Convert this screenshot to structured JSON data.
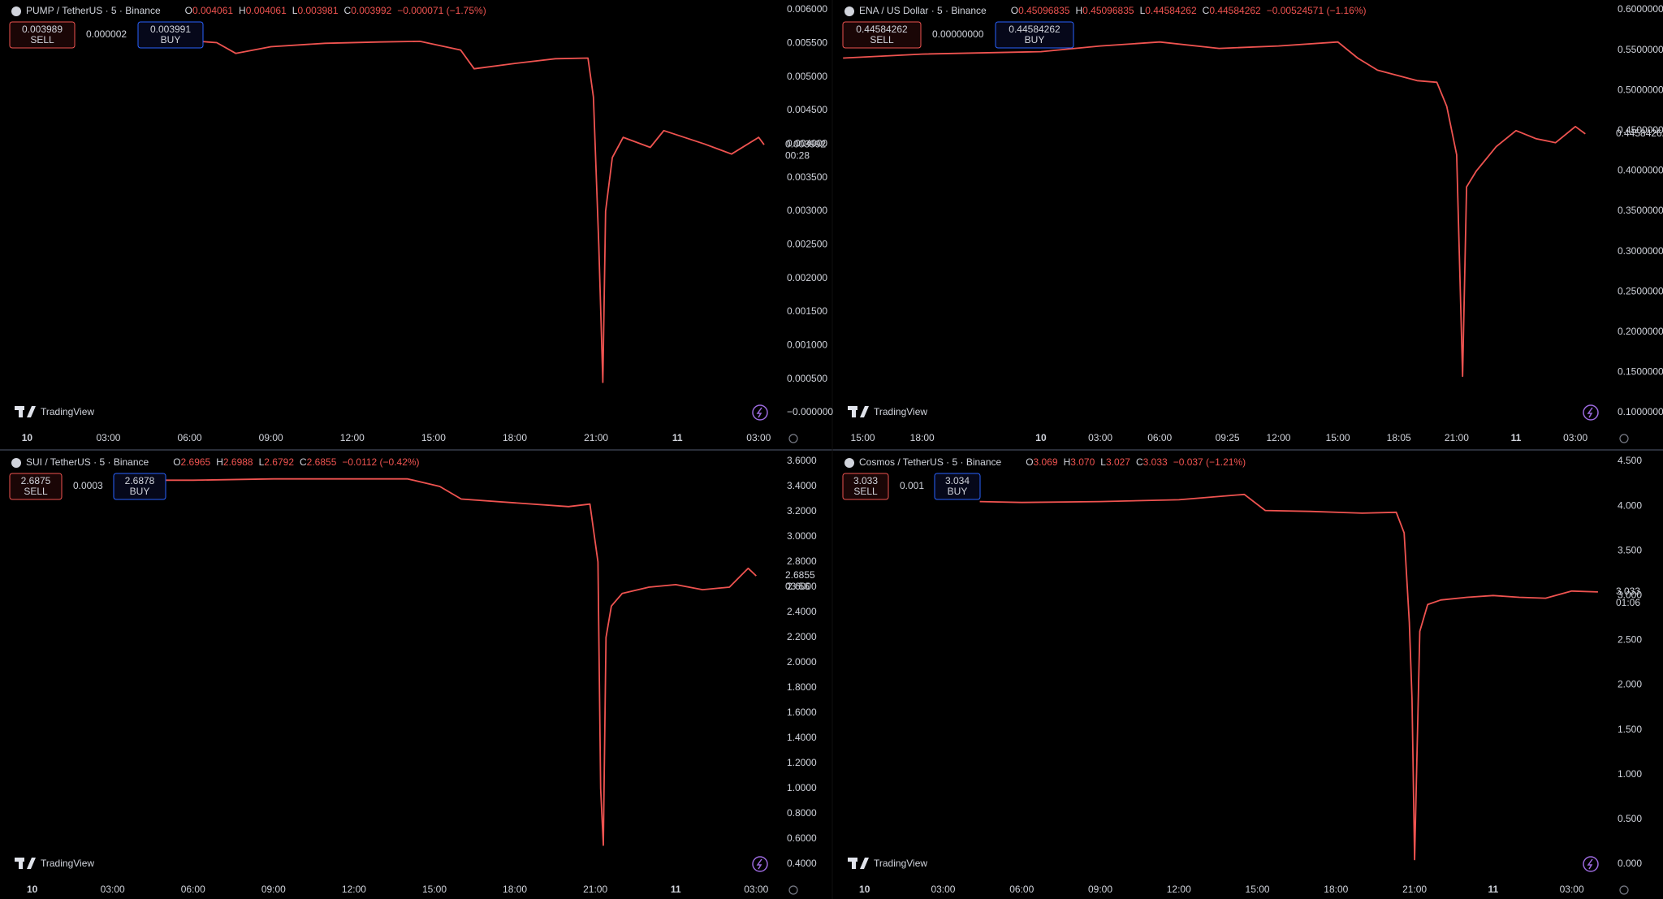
{
  "chart_data": [
    {
      "type": "line",
      "title": "PUMP / TetherUS · 5 · Binance",
      "ohlc": [
        {
          "label": "O",
          "value": "0.004061"
        },
        {
          "label": "H",
          "value": "0.004061"
        },
        {
          "label": "L",
          "value": "0.003981"
        },
        {
          "label": "C",
          "value": "0.003992"
        }
      ],
      "change": "−0.000071 (−1.75%)",
      "sell": {
        "price": "0.003989",
        "label": "SELL"
      },
      "spread": "0.000002",
      "buy": {
        "price": "0.003991",
        "label": "BUY"
      },
      "last_price": "0.003992",
      "countdown": "00:28",
      "watermark": "TradingView",
      "color": "#ef5350",
      "x": [
        5.3,
        7,
        7.7,
        9,
        11,
        13,
        14.5,
        16,
        16.5,
        18,
        19.5,
        20.7,
        20.9,
        21.1,
        21.25,
        21.35,
        21.6,
        22,
        23,
        23.5,
        25,
        26,
        27,
        27.2
      ],
      "values": [
        0.00556,
        0.00551,
        0.00535,
        0.00545,
        0.0055,
        0.00552,
        0.00553,
        0.0054,
        0.00512,
        0.0052,
        0.00527,
        0.00528,
        0.0047,
        0.0025,
        0.00045,
        0.003,
        0.0038,
        0.0041,
        0.00395,
        0.0042,
        0.004,
        0.00385,
        0.0041,
        0.00399
      ],
      "xlim": [
        -1,
        27.8
      ],
      "ylim": [
        0,
        0.006
      ],
      "xticks": [
        {
          "value": 0,
          "label": "10"
        },
        {
          "value": 3,
          "label": "03:00"
        },
        {
          "value": 6,
          "label": "06:00"
        },
        {
          "value": 9,
          "label": "09:00"
        },
        {
          "value": 12,
          "label": "12:00"
        },
        {
          "value": 15,
          "label": "15:00"
        },
        {
          "value": 18,
          "label": "18:00"
        },
        {
          "value": 21,
          "label": "21:00"
        },
        {
          "value": 24,
          "label": "11"
        },
        {
          "value": 27,
          "label": "03:00"
        }
      ],
      "yticks": [
        {
          "value": 0,
          "label": "−0.000000"
        },
        {
          "value": 0.0005,
          "label": "0.000500"
        },
        {
          "value": 0.001,
          "label": "0.001000"
        },
        {
          "value": 0.0015,
          "label": "0.001500"
        },
        {
          "value": 0.002,
          "label": "0.002000"
        },
        {
          "value": 0.0025,
          "label": "0.002500"
        },
        {
          "value": 0.003,
          "label": "0.003000"
        },
        {
          "value": 0.0035,
          "label": "0.003500"
        },
        {
          "value": 0.004,
          "label": "0.004000"
        },
        {
          "value": 0.0045,
          "label": "0.004500"
        },
        {
          "value": 0.005,
          "label": "0.005000"
        },
        {
          "value": 0.0055,
          "label": "0.005500"
        },
        {
          "value": 0.006,
          "label": "0.006000"
        }
      ]
    },
    {
      "type": "line",
      "title": "ENA / US Dollar · 5 · Binance",
      "ohlc": [
        {
          "label": "O",
          "value": "0.45096835"
        },
        {
          "label": "H",
          "value": "0.45096835"
        },
        {
          "label": "L",
          "value": "0.44584262"
        },
        {
          "label": "C",
          "value": "0.44584262"
        }
      ],
      "change": "−0.00524571 (−1.16%)",
      "sell": {
        "price": "0.44584262",
        "label": "SELL"
      },
      "spread": "0.00000000",
      "buy": {
        "price": "0.44584262",
        "label": "BUY"
      },
      "last_price": "0.44584262",
      "countdown": null,
      "watermark": "TradingView",
      "color": "#ef5350",
      "x": [
        -10,
        -6,
        0,
        3,
        6,
        9,
        12,
        15,
        16,
        17,
        19,
        20,
        20.5,
        21,
        21.3,
        21.5,
        22,
        23,
        24,
        25,
        26,
        27,
        27.5
      ],
      "values": [
        0.54,
        0.545,
        0.548,
        0.555,
        0.56,
        0.552,
        0.555,
        0.56,
        0.54,
        0.525,
        0.512,
        0.51,
        0.48,
        0.42,
        0.145,
        0.38,
        0.4,
        0.43,
        0.45,
        0.44,
        0.435,
        0.455,
        0.446
      ],
      "xlim": [
        -10.5,
        28.8
      ],
      "ylim": [
        0.1,
        0.6
      ],
      "xticks": [
        {
          "value": -9,
          "label": "15:00"
        },
        {
          "value": -6,
          "label": "18:00"
        },
        {
          "value": 0,
          "label": "10"
        },
        {
          "value": 3,
          "label": "03:00"
        },
        {
          "value": 6,
          "label": "06:00"
        },
        {
          "value": 9.42,
          "label": "09:25"
        },
        {
          "value": 12,
          "label": "12:00"
        },
        {
          "value": 15,
          "label": "15:00"
        },
        {
          "value": 18.08,
          "label": "18:05"
        },
        {
          "value": 21,
          "label": "21:00"
        },
        {
          "value": 24,
          "label": "11"
        },
        {
          "value": 27,
          "label": "03:00"
        }
      ],
      "yticks": [
        {
          "value": 0.1,
          "label": "0.10000000"
        },
        {
          "value": 0.15,
          "label": "0.15000000"
        },
        {
          "value": 0.2,
          "label": "0.20000000"
        },
        {
          "value": 0.25,
          "label": "0.25000000"
        },
        {
          "value": 0.3,
          "label": "0.30000000"
        },
        {
          "value": 0.35,
          "label": "0.35000000"
        },
        {
          "value": 0.4,
          "label": "0.40000000"
        },
        {
          "value": 0.45,
          "label": "0.45000000"
        },
        {
          "value": 0.5,
          "label": "0.50000000"
        },
        {
          "value": 0.55,
          "label": "0.55000000"
        },
        {
          "value": 0.6,
          "label": "0.60000000"
        }
      ]
    },
    {
      "type": "line",
      "title": "SUI / TetherUS · 5 · Binance",
      "ohlc": [
        {
          "label": "O",
          "value": "2.6965"
        },
        {
          "label": "H",
          "value": "2.6988"
        },
        {
          "label": "L",
          "value": "2.6792"
        },
        {
          "label": "C",
          "value": "2.6855"
        }
      ],
      "change": "−0.0112 (−0.42%)",
      "sell": {
        "price": "2.6875",
        "label": "SELL"
      },
      "spread": "0.0003",
      "buy": {
        "price": "2.6878",
        "label": "BUY"
      },
      "last_price": "2.6855",
      "countdown": "03:56",
      "watermark": "TradingView",
      "color": "#ef5350",
      "x": [
        3.7,
        6,
        9,
        12,
        14,
        15.2,
        16,
        18,
        20,
        20.8,
        21.1,
        21.2,
        21.3,
        21.4,
        21.6,
        22,
        23,
        24,
        25,
        26,
        26.7,
        27
      ],
      "values": [
        3.45,
        3.45,
        3.46,
        3.46,
        3.46,
        3.4,
        3.3,
        3.27,
        3.24,
        3.26,
        2.8,
        1.0,
        0.55,
        2.2,
        2.45,
        2.55,
        2.6,
        2.62,
        2.58,
        2.6,
        2.75,
        2.69
      ],
      "xlim": [
        -1.2,
        27.9
      ],
      "ylim": [
        0.4,
        3.6
      ],
      "xticks": [
        {
          "value": 0,
          "label": "10"
        },
        {
          "value": 3,
          "label": "03:00"
        },
        {
          "value": 6,
          "label": "06:00"
        },
        {
          "value": 9,
          "label": "09:00"
        },
        {
          "value": 12,
          "label": "12:00"
        },
        {
          "value": 15,
          "label": "15:00"
        },
        {
          "value": 18,
          "label": "18:00"
        },
        {
          "value": 21,
          "label": "21:00"
        },
        {
          "value": 24,
          "label": "11"
        },
        {
          "value": 27,
          "label": "03:00"
        }
      ],
      "yticks": [
        {
          "value": 0.4,
          "label": "0.4000"
        },
        {
          "value": 0.6,
          "label": "0.6000"
        },
        {
          "value": 0.8,
          "label": "0.8000"
        },
        {
          "value": 1,
          "label": "1.0000"
        },
        {
          "value": 1.2,
          "label": "1.2000"
        },
        {
          "value": 1.4,
          "label": "1.4000"
        },
        {
          "value": 1.6,
          "label": "1.6000"
        },
        {
          "value": 1.8,
          "label": "1.8000"
        },
        {
          "value": 2,
          "label": "2.0000"
        },
        {
          "value": 2.2,
          "label": "2.2000"
        },
        {
          "value": 2.4,
          "label": "2.4000"
        },
        {
          "value": 2.6,
          "label": "2.6000"
        },
        {
          "value": 2.8,
          "label": "2.8000"
        },
        {
          "value": 3,
          "label": "3.0000"
        },
        {
          "value": 3.2,
          "label": "3.2000"
        },
        {
          "value": 3.4,
          "label": "3.4000"
        },
        {
          "value": 3.6,
          "label": "3.6000"
        }
      ]
    },
    {
      "type": "line",
      "title": "Cosmos / TetherUS · 5 · Binance",
      "ohlc": [
        {
          "label": "O",
          "value": "3.069"
        },
        {
          "label": "H",
          "value": "3.070"
        },
        {
          "label": "L",
          "value": "3.027"
        },
        {
          "label": "C",
          "value": "3.033"
        }
      ],
      "change": "−0.037 (−1.21%)",
      "sell": {
        "price": "3.033",
        "label": "SELL"
      },
      "spread": "0.001",
      "buy": {
        "price": "3.034",
        "label": "BUY"
      },
      "last_price": "3.033",
      "countdown": "01:06",
      "watermark": "TradingView",
      "color": "#ef5350",
      "x": [
        4.4,
        6,
        9,
        12,
        14.5,
        15.3,
        17,
        19,
        20.3,
        20.6,
        20.8,
        20.9,
        21,
        21.2,
        21.5,
        22,
        23,
        24,
        25,
        26,
        27,
        28
      ],
      "values": [
        4.05,
        4.04,
        4.05,
        4.07,
        4.13,
        3.95,
        3.94,
        3.92,
        3.93,
        3.7,
        2.7,
        1.85,
        0.05,
        2.6,
        2.9,
        2.95,
        2.98,
        3,
        2.98,
        2.97,
        3.05,
        3.04
      ],
      "xlim": [
        -1.2,
        28.5
      ],
      "ylim": [
        0,
        4.5
      ],
      "xticks": [
        {
          "value": 0,
          "label": "10"
        },
        {
          "value": 3,
          "label": "03:00"
        },
        {
          "value": 6,
          "label": "06:00"
        },
        {
          "value": 9,
          "label": "09:00"
        },
        {
          "value": 12,
          "label": "12:00"
        },
        {
          "value": 15,
          "label": "15:00"
        },
        {
          "value": 18,
          "label": "18:00"
        },
        {
          "value": 21,
          "label": "21:00"
        },
        {
          "value": 24,
          "label": "11"
        },
        {
          "value": 27,
          "label": "03:00"
        }
      ],
      "yticks": [
        {
          "value": 0,
          "label": "0.000"
        },
        {
          "value": 0.5,
          "label": "0.500"
        },
        {
          "value": 1,
          "label": "1.000"
        },
        {
          "value": 1.5,
          "label": "1.500"
        },
        {
          "value": 2,
          "label": "2.000"
        },
        {
          "value": 2.5,
          "label": "2.500"
        },
        {
          "value": 3,
          "label": "3.000"
        },
        {
          "value": 3.5,
          "label": "3.500"
        },
        {
          "value": 4,
          "label": "4.000"
        },
        {
          "value": 4.5,
          "label": "4.500"
        }
      ]
    }
  ]
}
